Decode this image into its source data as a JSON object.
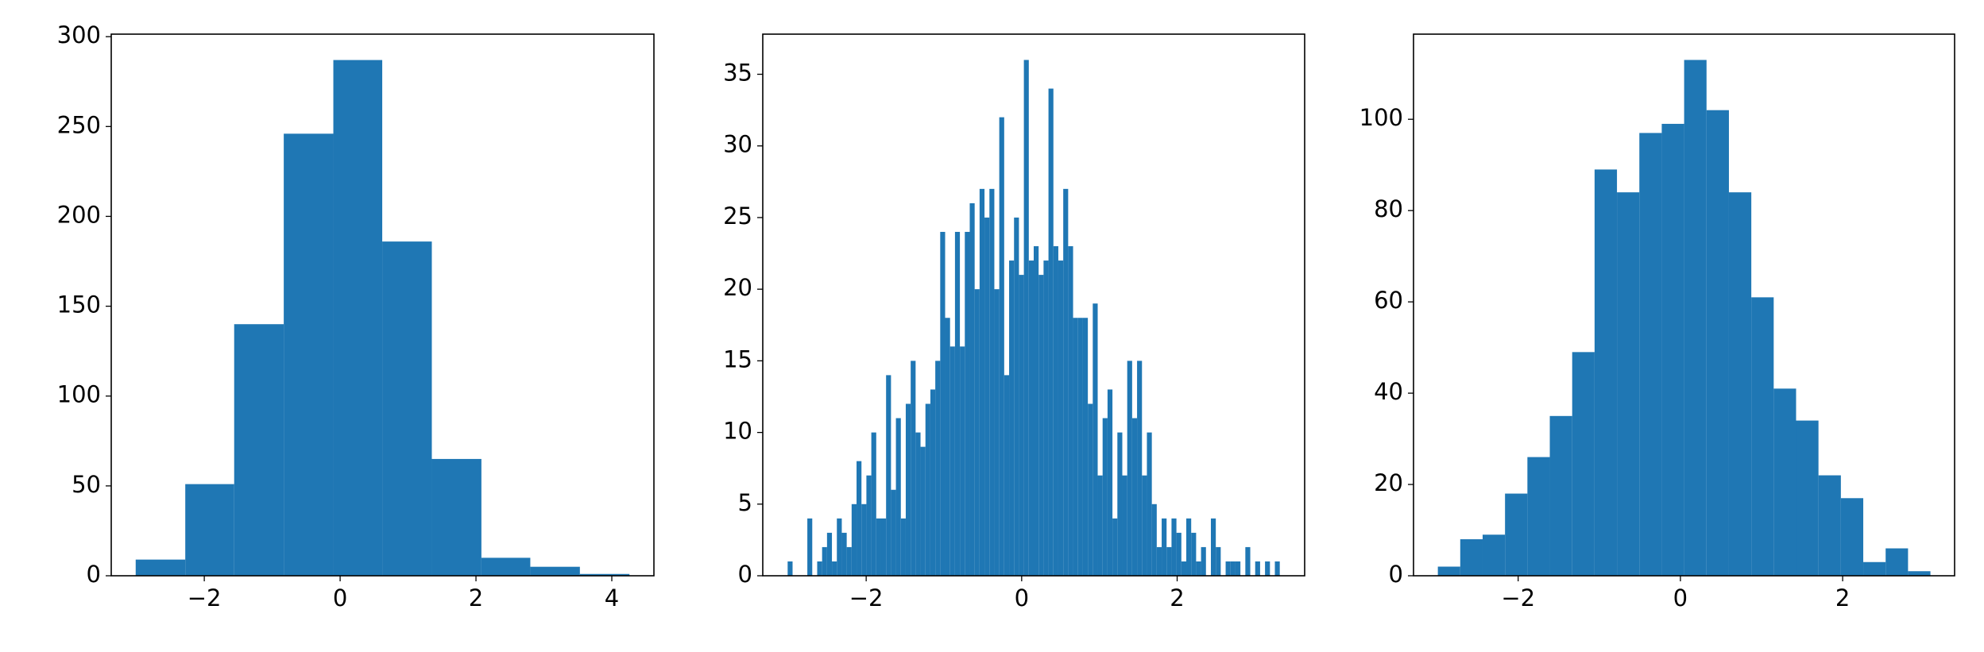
{
  "chart_data": [
    {
      "type": "histogram",
      "color": "#1f77b4",
      "bins": [
        -3.01,
        -2.28,
        -1.56,
        -0.83,
        -0.1,
        0.62,
        1.35,
        2.08,
        2.8,
        3.53,
        4.26
      ],
      "values": [
        9,
        51,
        140,
        246,
        287,
        186,
        65,
        10,
        5,
        1
      ],
      "xlim": [
        -3.37,
        4.62
      ],
      "ylim": [
        0,
        301.4
      ],
      "xticks": [
        {
          "value": -2,
          "label": "−2"
        },
        0,
        2,
        4
      ],
      "yticks": [
        0,
        50,
        100,
        150,
        200,
        250,
        300
      ]
    },
    {
      "type": "histogram",
      "color": "#1f77b4",
      "bins": [
        -3.01,
        -2.9467,
        -2.8834,
        -2.8201,
        -2.7568,
        -2.6935,
        -2.6302,
        -2.5669,
        -2.5036,
        -2.4403,
        -2.377,
        -2.3137,
        -2.2504,
        -2.1871,
        -2.1238,
        -2.0605,
        -1.9972,
        -1.9339,
        -1.8706,
        -1.8073,
        -1.744,
        -1.6807,
        -1.6174,
        -1.5541,
        -1.4908,
        -1.4275,
        -1.3642,
        -1.3009,
        -1.2376,
        -1.1743,
        -1.111,
        -1.0477,
        -0.9844,
        -0.9211,
        -0.8578,
        -0.7945,
        -0.7312,
        -0.6679,
        -0.6046,
        -0.5413,
        -0.478,
        -0.4147,
        -0.3514,
        -0.2881,
        -0.2248,
        -0.1615,
        -0.0982,
        -0.0349,
        0.0284,
        0.0917,
        0.155,
        0.2183,
        0.2816,
        0.3449,
        0.4082,
        0.4715,
        0.5348,
        0.5981,
        0.6614,
        0.7247,
        0.788,
        0.8513,
        0.9146,
        0.9779,
        1.0412,
        1.1045,
        1.1678,
        1.2311,
        1.2944,
        1.3577,
        1.421,
        1.4843,
        1.5476,
        1.6109,
        1.6742,
        1.7375,
        1.8008,
        1.8641,
        1.9274,
        1.9907,
        2.054,
        2.1173,
        2.1806,
        2.2439,
        2.3072,
        2.3705,
        2.4338,
        2.4971,
        2.5604,
        2.6237,
        2.687,
        2.7503,
        2.8136,
        2.877,
        2.9403,
        3.0036,
        3.0669,
        3.1302,
        3.1935,
        3.2568,
        3.32
      ],
      "values": [
        1,
        0,
        0,
        0,
        4,
        0,
        1,
        2,
        3,
        1,
        4,
        3,
        2,
        5,
        8,
        5,
        7,
        10,
        4,
        4,
        14,
        6,
        11,
        4,
        12,
        15,
        10,
        9,
        12,
        13,
        15,
        24,
        18,
        16,
        24,
        16,
        24,
        26,
        20,
        27,
        25,
        27,
        20,
        32,
        14,
        22,
        25,
        21,
        36,
        22,
        23,
        21,
        22,
        34,
        23,
        22,
        27,
        23,
        18,
        18,
        18,
        12,
        19,
        7,
        11,
        13,
        4,
        10,
        7,
        15,
        11,
        15,
        7,
        10,
        5,
        2,
        4,
        2,
        4,
        3,
        1,
        4,
        3,
        1,
        2,
        0,
        4,
        2,
        0,
        1,
        1,
        1,
        0,
        2,
        0,
        1,
        0,
        1,
        0,
        1
      ],
      "xlim": [
        -3.33,
        3.64
      ],
      "ylim": [
        0,
        37.8
      ],
      "xticks": [
        {
          "value": -2,
          "label": "−2"
        },
        0,
        2
      ],
      "yticks": [
        0,
        5,
        10,
        15,
        20,
        25,
        30,
        35
      ]
    },
    {
      "type": "histogram",
      "color": "#1f77b4",
      "bins": [
        -2.99,
        -2.714,
        -2.438,
        -2.162,
        -1.886,
        -1.61,
        -1.334,
        -1.058,
        -0.782,
        -0.506,
        -0.23,
        0.046,
        0.322,
        0.598,
        0.874,
        1.15,
        1.426,
        1.702,
        1.978,
        2.254,
        2.53,
        2.806,
        3.082
      ],
      "values": [
        2,
        8,
        9,
        18,
        26,
        35,
        49,
        89,
        84,
        97,
        99,
        113,
        102,
        84,
        61,
        41,
        34,
        22,
        17,
        3,
        6,
        1
      ],
      "xlim": [
        -3.29,
        3.38
      ],
      "ylim": [
        0,
        118.65
      ],
      "xticks": [
        {
          "value": -2,
          "label": "−2"
        },
        0,
        2
      ],
      "yticks": [
        0,
        20,
        40,
        60,
        80,
        100
      ]
    }
  ]
}
